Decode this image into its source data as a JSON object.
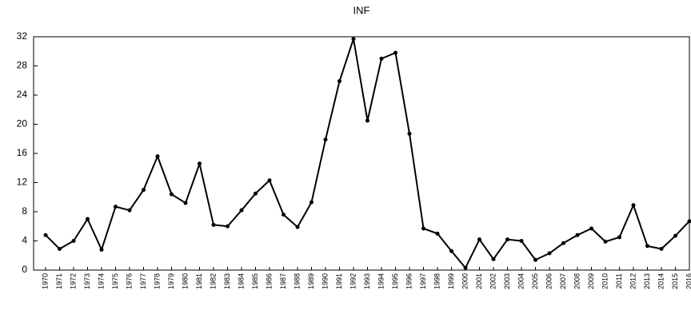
{
  "chart_data": {
    "type": "line",
    "title": "INF",
    "categories": [
      "1970",
      "1971",
      "1972",
      "1973",
      "1974",
      "1975",
      "1976",
      "1977",
      "1978",
      "1979",
      "1980",
      "1981",
      "1982",
      "1983",
      "1984",
      "1985",
      "1986",
      "1987",
      "1988",
      "1989",
      "1990",
      "1991",
      "1992",
      "1993",
      "1994",
      "1995",
      "1996",
      "1997",
      "1998",
      "1999",
      "2000",
      "2001",
      "2002",
      "2003",
      "2004",
      "2005",
      "2006",
      "2007",
      "2008",
      "2009",
      "2010",
      "2011",
      "2012",
      "2013",
      "2014",
      "2015",
      "2016"
    ],
    "values": [
      4.8,
      2.9,
      4.0,
      7.0,
      2.8,
      8.7,
      8.2,
      11.0,
      15.6,
      10.4,
      9.2,
      14.6,
      6.2,
      6.0,
      8.2,
      10.5,
      12.3,
      7.6,
      5.9,
      9.3,
      17.9,
      25.9,
      31.7,
      20.5,
      29.0,
      29.8,
      18.7,
      5.7,
      5.0,
      2.6,
      0.3,
      4.2,
      1.5,
      4.2,
      4.0,
      1.4,
      2.3,
      3.7,
      4.8,
      5.7,
      3.9,
      4.5,
      8.9,
      3.3,
      2.9,
      4.7,
      6.7
    ],
    "color": "#000000",
    "ylim": [
      0,
      32
    ],
    "yticks": [
      0,
      4,
      8,
      12,
      16,
      20,
      24,
      28,
      32
    ],
    "grid": false
  }
}
